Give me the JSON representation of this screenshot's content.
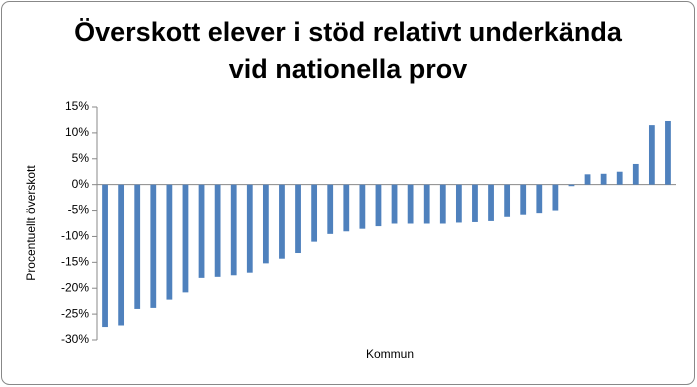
{
  "chart_data": {
    "type": "bar",
    "title": [
      "Överskott elever i stöd relativt underkända",
      "vid nationella prov"
    ],
    "x_label": "Kommun",
    "y_label": "Procentuellt överskott",
    "categories": [
      null,
      null,
      null,
      null,
      null,
      null,
      null,
      null,
      null,
      null,
      null,
      null,
      null,
      null,
      null,
      null,
      null,
      null,
      null,
      null,
      null,
      null,
      null,
      null,
      null,
      null,
      null,
      null,
      null,
      null,
      null,
      null,
      null,
      null,
      null,
      null
    ],
    "values": [
      -27.5,
      -27.2,
      -24,
      -23.8,
      -22.2,
      -20.8,
      -18,
      -17.8,
      -17.5,
      -17,
      -15.2,
      -14.3,
      -13.2,
      -11,
      -9.5,
      -9,
      -8.5,
      -8,
      -7.5,
      -7.5,
      -7.5,
      -7.5,
      -7.3,
      -7.2,
      -7,
      -6.2,
      -5.8,
      -5.5,
      -5,
      -0.3,
      2,
      2.1,
      2.5,
      4,
      11.5,
      12.3
    ],
    "color": "#4f81bd",
    "ylim": [
      -30,
      15
    ],
    "yticks": [
      {
        "value": -30,
        "label": "-30%"
      },
      {
        "value": -25,
        "label": "-25%"
      },
      {
        "value": -20,
        "label": "-20%"
      },
      {
        "value": -15,
        "label": "-15%"
      },
      {
        "value": -10,
        "label": "-10%"
      },
      {
        "value": -5,
        "label": "-5%"
      },
      {
        "value": 0,
        "label": "0%"
      },
      {
        "value": 5,
        "label": "5%"
      },
      {
        "value": 10,
        "label": "10%"
      },
      {
        "value": 15,
        "label": "15%"
      }
    ],
    "grid": false
  }
}
